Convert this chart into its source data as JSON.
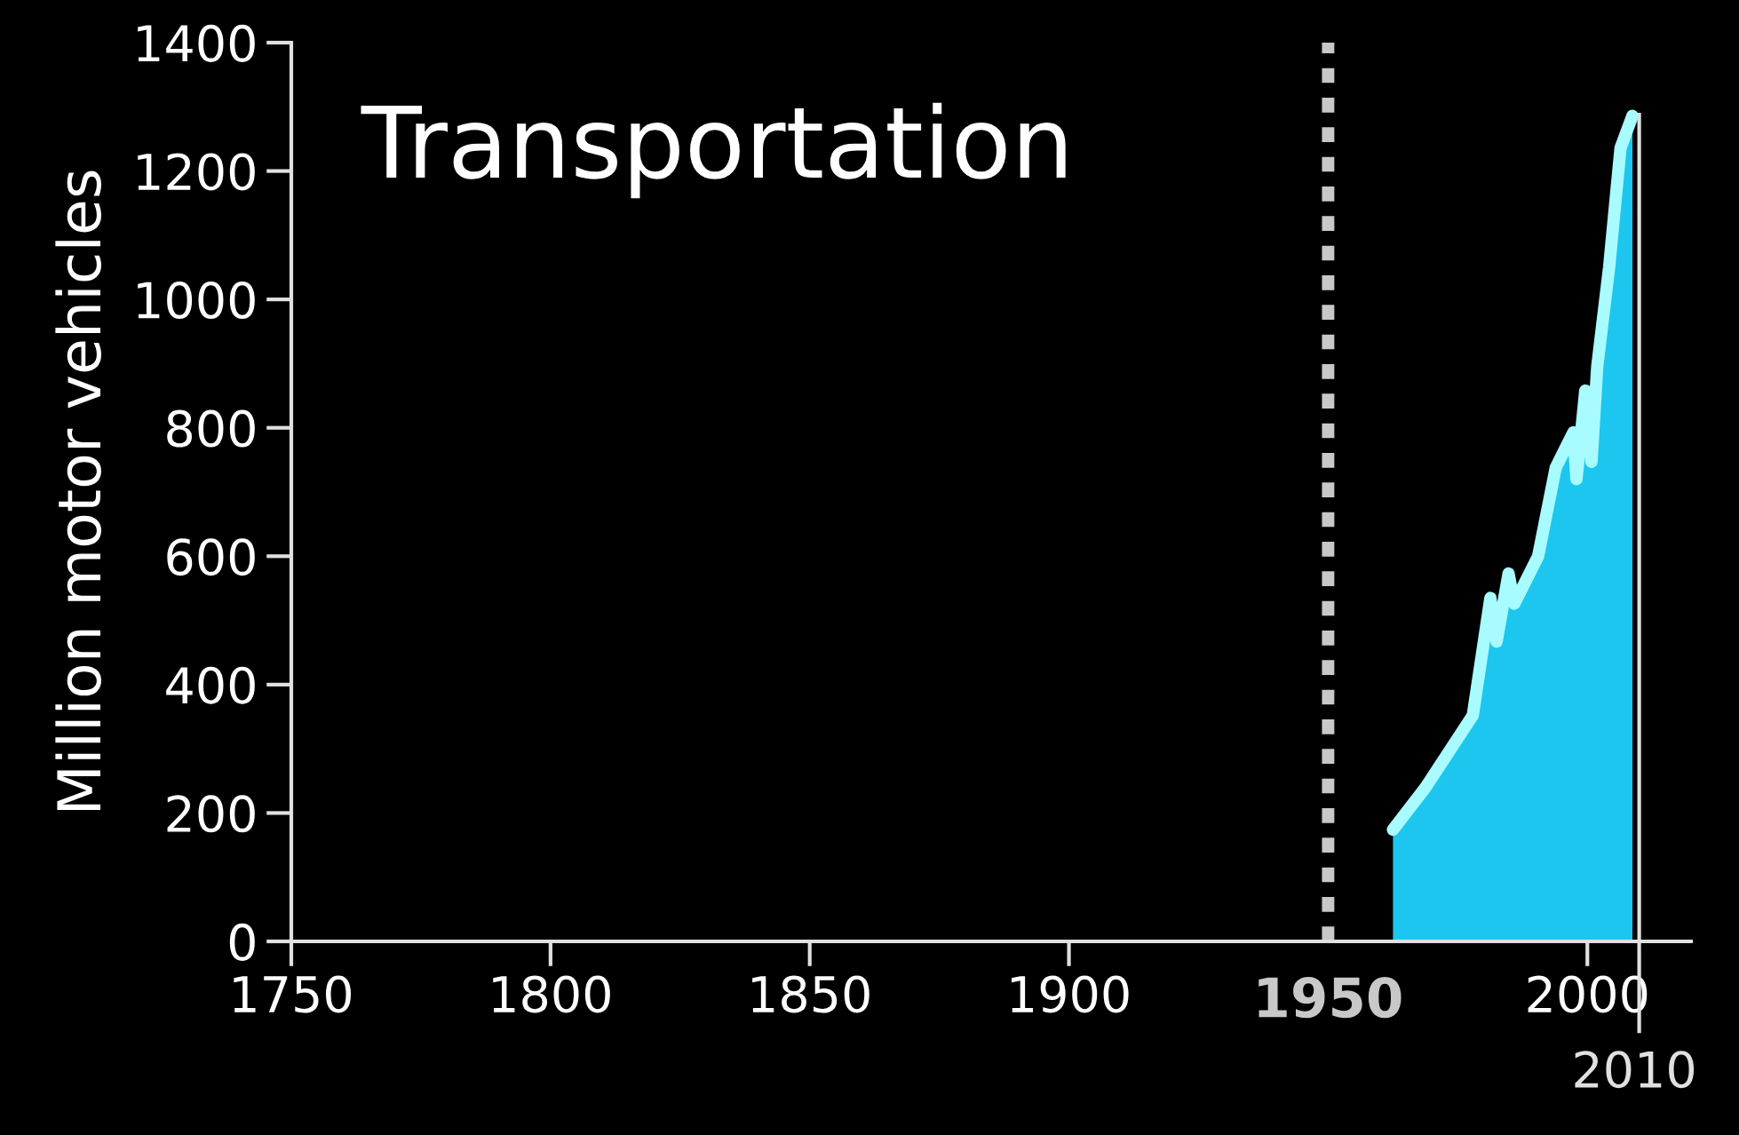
{
  "chart_data": {
    "type": "area",
    "title": "Transportation",
    "ylabel": "Million motor vehicles",
    "series": [
      {
        "color": "#a8fbff",
        "x": [
          1962.5,
          1968.8,
          1977.9,
          1981.3,
          1982.5,
          1984.8,
          1985.9,
          1990.5,
          1993.9,
          1997.3,
          1997.9,
          1999.6,
          2000.8,
          2001.9,
          2004.2,
          2006.4,
          2008.7
        ],
        "values": [
          174,
          240,
          352,
          535,
          467,
          573,
          526,
          600,
          738,
          793,
          720,
          858,
          747,
          895,
          1050,
          1236,
          1286
        ]
      }
    ],
    "xlim": [
      1750,
      2020
    ],
    "xticks": [
      1750,
      1800,
      1850,
      1900,
      2000
    ],
    "ylim": [
      0,
      1400
    ],
    "yticks": [
      0,
      200,
      400,
      600,
      800,
      1000,
      1200,
      1400
    ],
    "ref_lines": [
      {
        "axis": "x",
        "value": 1950,
        "label": "1950",
        "color": "#c8c8c8",
        "line_style": "dotted"
      },
      {
        "axis": "x",
        "value": 2010,
        "label": "2010",
        "color": "#e0e0e0",
        "line_style": "solid"
      }
    ],
    "grid": false,
    "legend": false
  }
}
